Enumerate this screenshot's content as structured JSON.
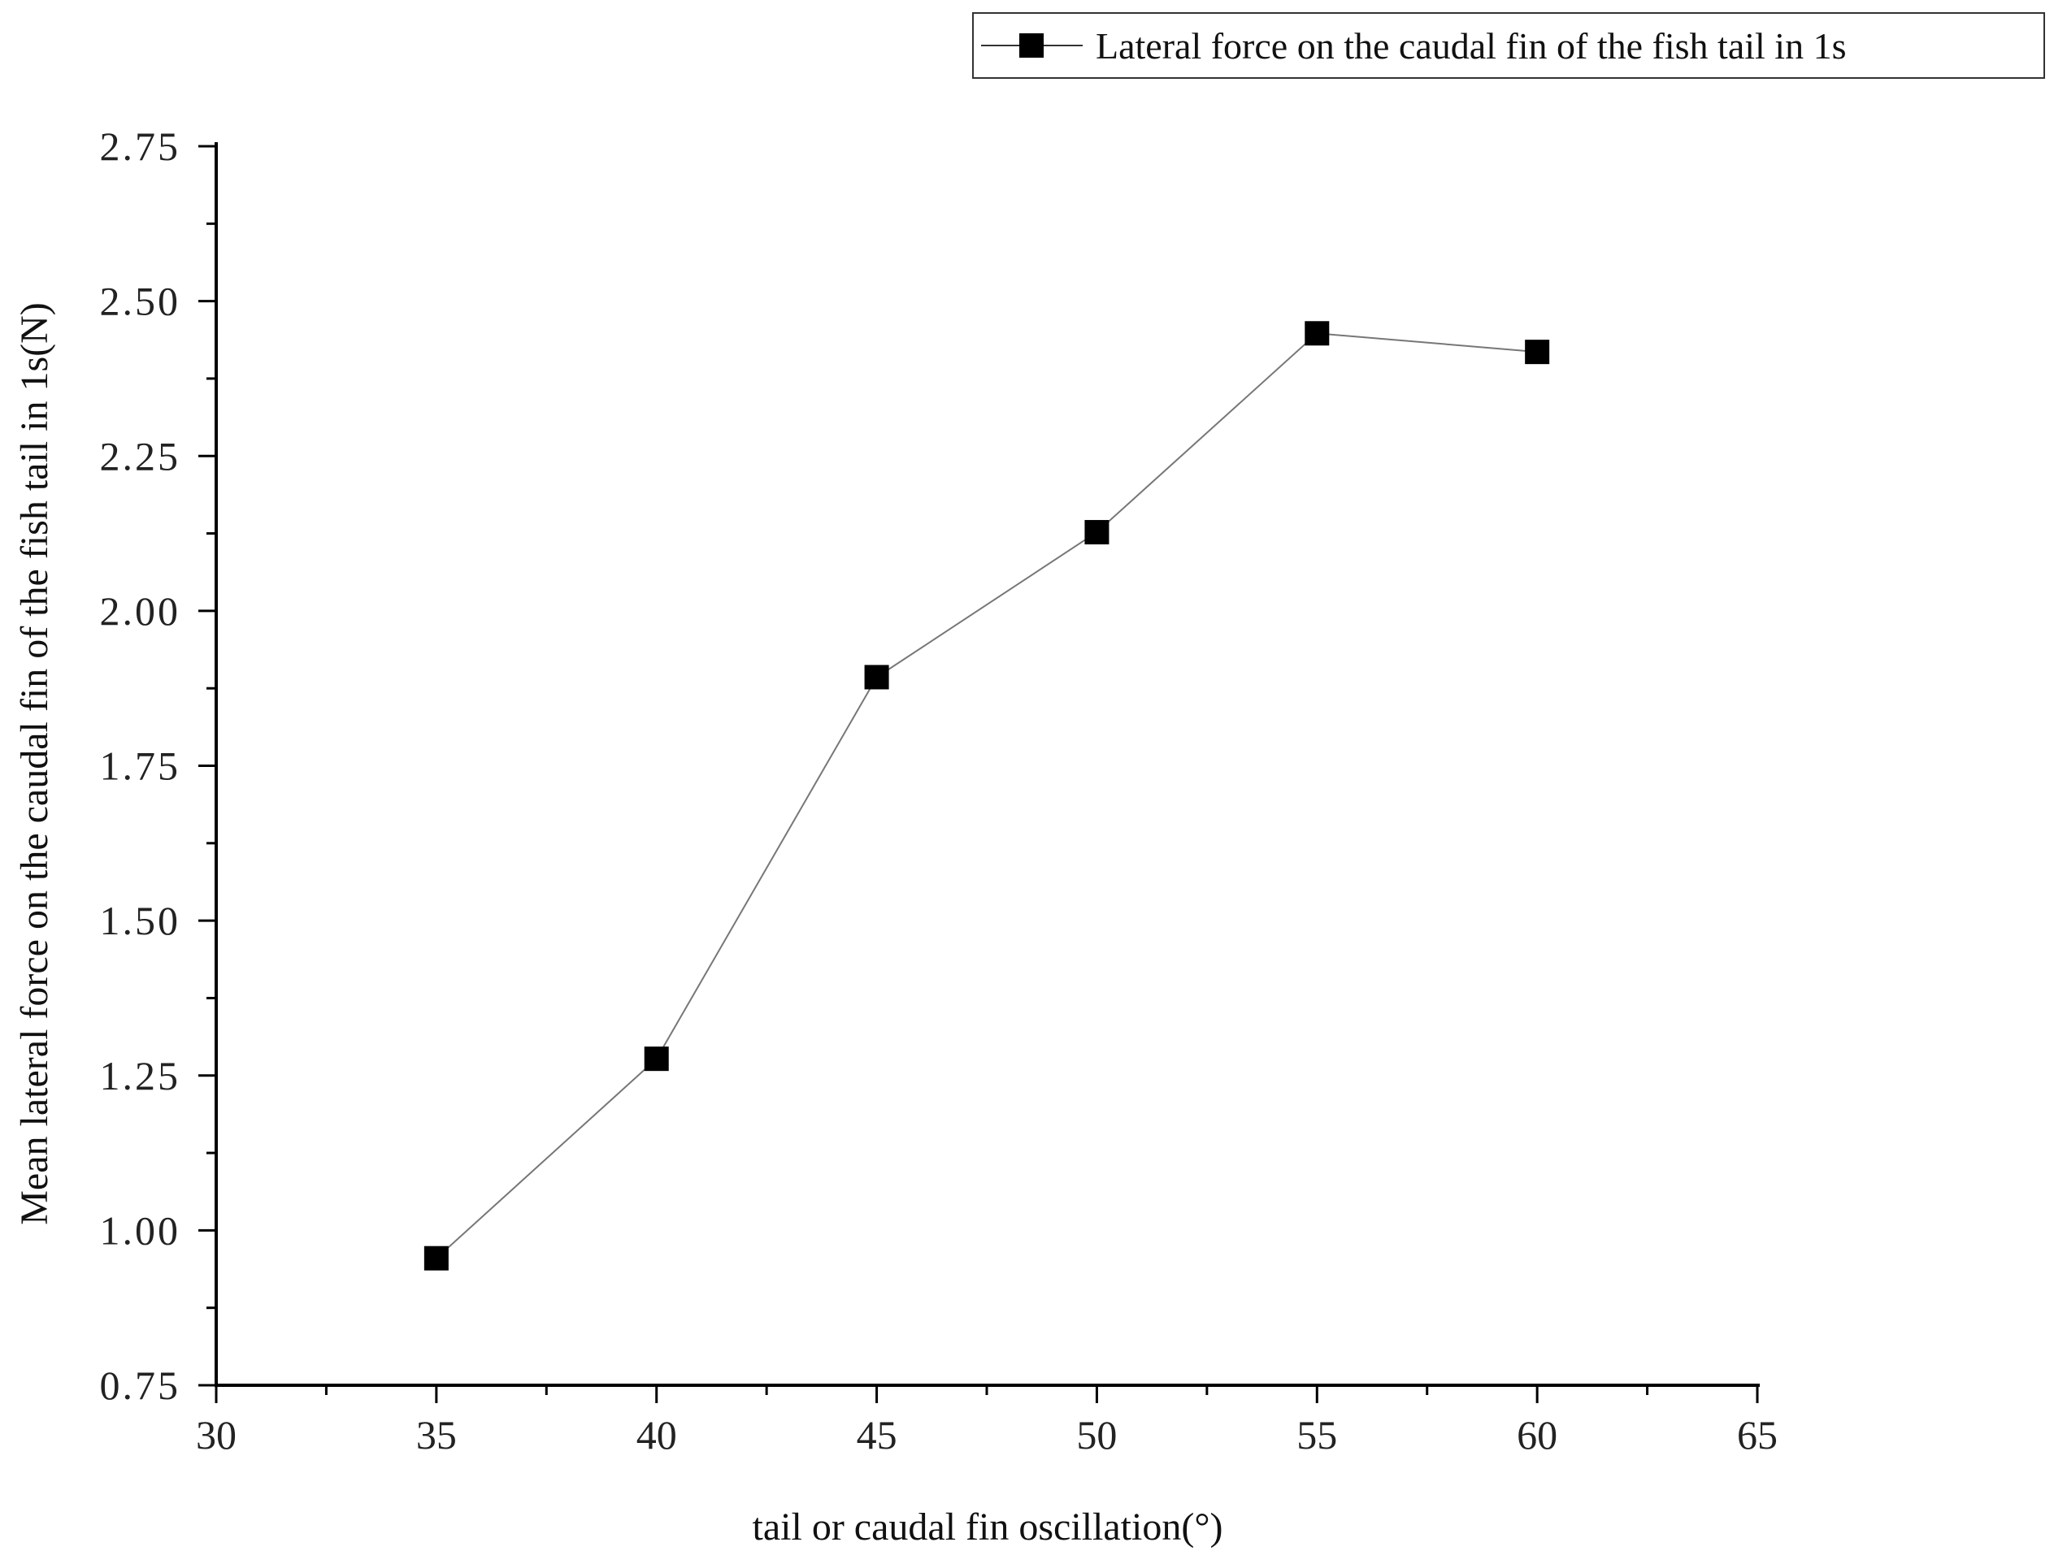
{
  "chart_data": {
    "type": "line",
    "title": "",
    "xlabel": "tail or caudal fin oscillation(°)",
    "ylabel": "Mean lateral force on the caudal fin of the fish tail in 1s(N)",
    "xlim": [
      30,
      65
    ],
    "ylim": [
      0.75,
      2.75
    ],
    "x_ticks": [
      "30",
      "35",
      "40",
      "45",
      "50",
      "55",
      "60",
      "65"
    ],
    "y_ticks": [
      "0.75",
      "1.00",
      "1.25",
      "1.50",
      "1.75",
      "2.00",
      "2.25",
      "2.50",
      "2.75"
    ],
    "grid": false,
    "legend_position": "top-right",
    "x": [
      35,
      40,
      45,
      50,
      55,
      60
    ],
    "series": [
      {
        "name": "Lateral force on the caudal fin of the fish tail in 1s",
        "marker": "square",
        "values": [
          0.955,
          1.277,
          1.893,
          2.127,
          2.448,
          2.418
        ]
      }
    ],
    "colors": {
      "line": "#777777",
      "marker": "#000000",
      "axis": "#000000"
    }
  }
}
